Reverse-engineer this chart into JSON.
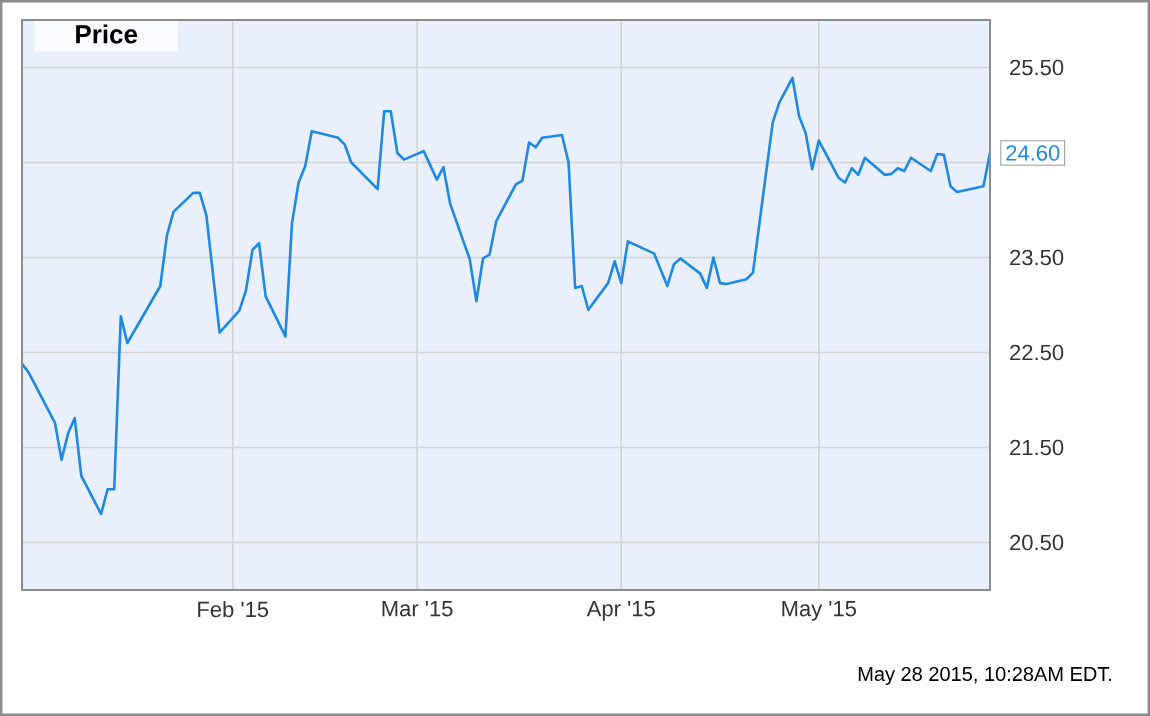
{
  "chart_data": {
    "type": "line",
    "title": "Price",
    "x": [
      "2014-12-31",
      "2015-01-01",
      "2015-01-05",
      "2015-01-06",
      "2015-01-07",
      "2015-01-08",
      "2015-01-09",
      "2015-01-12",
      "2015-01-13",
      "2015-01-14",
      "2015-01-15",
      "2015-01-16",
      "2015-01-21",
      "2015-01-22",
      "2015-01-23",
      "2015-01-26",
      "2015-01-27",
      "2015-01-28",
      "2015-01-30",
      "2015-02-02",
      "2015-02-03",
      "2015-02-04",
      "2015-02-05",
      "2015-02-06",
      "2015-02-09",
      "2015-02-10",
      "2015-02-11",
      "2015-02-12",
      "2015-02-13",
      "2015-02-17",
      "2015-02-18",
      "2015-02-19",
      "2015-02-23",
      "2015-02-24",
      "2015-02-25",
      "2015-02-26",
      "2015-02-27",
      "2015-03-02",
      "2015-03-04",
      "2015-03-05",
      "2015-03-06",
      "2015-03-09",
      "2015-03-10",
      "2015-03-11",
      "2015-03-12",
      "2015-03-13",
      "2015-03-16",
      "2015-03-17",
      "2015-03-18",
      "2015-03-19",
      "2015-03-20",
      "2015-03-23",
      "2015-03-24",
      "2015-03-25",
      "2015-03-26",
      "2015-03-27",
      "2015-03-30",
      "2015-03-31",
      "2015-04-01",
      "2015-04-02",
      "2015-04-06",
      "2015-04-08",
      "2015-04-09",
      "2015-04-10",
      "2015-04-13",
      "2015-04-14",
      "2015-04-15",
      "2015-04-16",
      "2015-04-17",
      "2015-04-20",
      "2015-04-21",
      "2015-04-24",
      "2015-04-25",
      "2015-04-27",
      "2015-04-28",
      "2015-04-29",
      "2015-04-30",
      "2015-05-01",
      "2015-05-04",
      "2015-05-05",
      "2015-05-06",
      "2015-05-07",
      "2015-05-08",
      "2015-05-11",
      "2015-05-12",
      "2015-05-13",
      "2015-05-14",
      "2015-05-15",
      "2015-05-18",
      "2015-05-19",
      "2015-05-20",
      "2015-05-21",
      "2015-05-22",
      "2015-05-26",
      "2015-05-27"
    ],
    "values": [
      22.38,
      22.29,
      21.76,
      21.37,
      21.65,
      21.81,
      21.2,
      20.8,
      21.06,
      21.06,
      22.88,
      22.6,
      23.2,
      23.73,
      23.98,
      24.18,
      24.18,
      23.94,
      22.71,
      22.94,
      23.15,
      23.58,
      23.65,
      23.09,
      22.67,
      23.86,
      24.29,
      24.46,
      24.83,
      24.76,
      24.69,
      24.5,
      24.22,
      25.04,
      25.04,
      24.6,
      24.53,
      24.62,
      24.32,
      24.45,
      24.07,
      23.48,
      23.04,
      23.49,
      23.53,
      23.88,
      24.27,
      24.31,
      24.71,
      24.66,
      24.76,
      24.79,
      24.5,
      23.18,
      23.2,
      22.95,
      23.23,
      23.46,
      23.23,
      23.67,
      23.54,
      23.2,
      23.43,
      23.49,
      23.33,
      23.18,
      23.5,
      23.23,
      23.22,
      23.27,
      23.34,
      24.92,
      25.13,
      25.39,
      24.99,
      24.81,
      24.43,
      24.73,
      24.34,
      24.29,
      24.44,
      24.37,
      24.55,
      24.37,
      24.38,
      24.44,
      24.41,
      24.55,
      24.41,
      24.59,
      24.58,
      24.25,
      24.19,
      24.25,
      24.6
    ],
    "color": "#1e88e5",
    "xlim": [
      "2014-12-31",
      "2015-05-27"
    ],
    "xticks": [
      {
        "value": "2015-02-01",
        "label": "Feb '15"
      },
      {
        "value": "2015-03-01",
        "label": "Mar '15"
      },
      {
        "value": "2015-04-01",
        "label": "Apr '15"
      },
      {
        "value": "2015-05-01",
        "label": "May '15"
      }
    ],
    "ylim": [
      20,
      26
    ],
    "yticks": [
      {
        "value": 20.5,
        "label": "20.50"
      },
      {
        "value": 21.5,
        "label": "21.50"
      },
      {
        "value": 22.5,
        "label": "22.50"
      },
      {
        "value": 23.5,
        "label": "23.50"
      },
      {
        "value": 24.5,
        "label": null
      },
      {
        "value": 25.5,
        "label": "25.50"
      }
    ],
    "grid": true,
    "marker": "none",
    "line_style": "solid",
    "annotations": [
      {
        "text": "24.60",
        "x": "2015-05-27",
        "y": 24.6
      },
      "May 28 2015, 10:28AM EDT."
    ]
  }
}
